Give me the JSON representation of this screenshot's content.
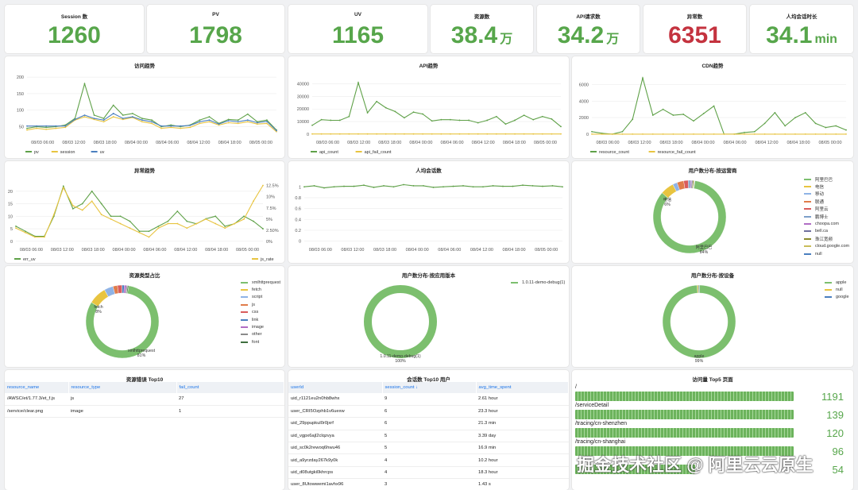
{
  "stats": [
    {
      "title": "Session 数",
      "value": "1260",
      "unit": ""
    },
    {
      "title": "PV",
      "value": "1798",
      "unit": ""
    },
    {
      "title": "UV",
      "value": "1165",
      "unit": ""
    },
    {
      "title": "资源数",
      "value": "38.4",
      "unit": "万"
    },
    {
      "title": "API请求数",
      "value": "34.2",
      "unit": "万"
    },
    {
      "title": "异常数",
      "value": "6351",
      "unit": "",
      "color": "#c4333f"
    },
    {
      "title": "人均会话时长",
      "value": "34.1",
      "unit": "min"
    }
  ],
  "colors": {
    "green": "#5fa148",
    "yellow": "#e8c440",
    "blue": "#4a7fbf",
    "accent_red": "#c4333f"
  },
  "chart_data": [
    {
      "id": "visits",
      "type": "line",
      "title": "访问趋势",
      "x_ticks": [
        "08/03 06:00",
        "08/03 12:00",
        "08/03 18:00",
        "08/04 00:00",
        "08/04 06:00",
        "08/04 12:00",
        "08/04 18:00",
        "08/05 00:00"
      ],
      "y_ticks": [
        50,
        100,
        150,
        200
      ],
      "ylim": [
        20,
        210
      ],
      "series": [
        {
          "name": "pv",
          "color": "#5fa148",
          "values": [
            45,
            50,
            48,
            50,
            55,
            75,
            180,
            85,
            75,
            115,
            85,
            90,
            75,
            70,
            50,
            55,
            50,
            55,
            70,
            80,
            60,
            72,
            70,
            88,
            65,
            70,
            40
          ]
        },
        {
          "name": "session",
          "color": "#e8c440",
          "values": [
            40,
            45,
            42,
            45,
            48,
            70,
            80,
            72,
            65,
            80,
            72,
            78,
            65,
            60,
            45,
            48,
            45,
            48,
            60,
            65,
            55,
            62,
            60,
            65,
            58,
            60,
            35
          ]
        },
        {
          "name": "uv",
          "color": "#4a7fbf",
          "values": [
            52,
            52,
            52,
            52,
            52,
            72,
            85,
            75,
            70,
            90,
            75,
            80,
            70,
            65,
            52,
            52,
            52,
            54,
            65,
            70,
            58,
            68,
            65,
            70,
            62,
            66,
            38
          ]
        }
      ]
    },
    {
      "id": "api",
      "type": "line",
      "title": "API趋势",
      "x_ticks": [
        "08/03 06:00",
        "08/03 12:00",
        "08/03 18:00",
        "08/04 00:00",
        "08/04 06:00",
        "08/04 12:00",
        "08/04 18:00",
        "08/05 00:00"
      ],
      "y_ticks": [
        0,
        10000,
        20000,
        30000,
        40000
      ],
      "ylim": [
        -2000,
        48000
      ],
      "series": [
        {
          "name": "api_count",
          "color": "#5fa148",
          "values": [
            7000,
            11500,
            11000,
            11000,
            14000,
            41000,
            17000,
            26000,
            21000,
            18000,
            13000,
            17500,
            16000,
            10500,
            11500,
            11500,
            11000,
            11000,
            9000,
            11000,
            14000,
            8000,
            11000,
            15000,
            11500,
            14000,
            12000,
            6000
          ]
        },
        {
          "name": "api_fail_count",
          "color": "#e8c440",
          "values": [
            100,
            100,
            100,
            100,
            100,
            100,
            100,
            100,
            100,
            100,
            100,
            100,
            100,
            100,
            100,
            100,
            100,
            100,
            100,
            100,
            100,
            100,
            100,
            100,
            100,
            100,
            100,
            100
          ]
        }
      ]
    },
    {
      "id": "cdn",
      "type": "line",
      "title": "CDN趋势",
      "x_ticks": [
        "08/03 06:00",
        "08/03 12:00",
        "08/03 18:00",
        "08/04 00:00",
        "08/04 06:00",
        "08/04 12:00",
        "08/04 18:00",
        "08/05 00:00"
      ],
      "y_ticks": [
        0,
        2000,
        4000,
        6000
      ],
      "ylim": [
        -300,
        7300
      ],
      "series": [
        {
          "name": "resource_count",
          "color": "#5fa148",
          "values": [
            300,
            100,
            0,
            300,
            1800,
            6800,
            2300,
            3000,
            2300,
            2400,
            1600,
            2500,
            3400,
            0,
            0,
            200,
            300,
            1300,
            2600,
            1000,
            2000,
            2600,
            1300,
            800,
            1000,
            500
          ]
        },
        {
          "name": "resource_fail_count",
          "color": "#e8c440",
          "values": [
            0,
            0,
            0,
            0,
            0,
            0,
            0,
            0,
            0,
            0,
            0,
            0,
            0,
            0,
            0,
            0,
            0,
            0,
            0,
            0,
            0,
            0,
            0,
            0,
            0,
            0
          ]
        }
      ]
    },
    {
      "id": "errors",
      "type": "line",
      "title": "异常趋势",
      "x_ticks": [
        "08/03 06:00",
        "08/03 12:00",
        "08/03 18:00",
        "08/04 00:00",
        "08/04 06:00",
        "08/04 12:00",
        "08/04 18:00",
        "08/05 00:00"
      ],
      "y_ticks": [
        0,
        5,
        10,
        15,
        20
      ],
      "ylim": [
        -1,
        25
      ],
      "y2_ticks": [
        "0%",
        "2.50%",
        "5%",
        "7.5%",
        "10%",
        "12.5%"
      ],
      "y2lim": [
        -0.5,
        14
      ],
      "series": [
        {
          "name": "err_uv",
          "color": "#5fa148",
          "values": [
            6,
            4,
            2,
            2,
            10,
            22,
            13,
            15,
            20,
            15,
            10,
            10,
            8,
            4,
            4,
            6,
            8,
            12,
            8,
            7,
            9,
            10,
            6,
            7,
            10,
            8,
            5
          ]
        },
        {
          "name": "js_rate",
          "color": "#e8c440",
          "values": [
            3,
            2,
            1,
            1,
            6,
            12,
            8,
            7,
            9,
            6,
            5,
            4,
            3,
            2,
            1,
            3,
            4,
            4,
            3,
            4,
            5,
            4,
            3,
            4,
            5,
            9,
            12.5
          ]
        }
      ]
    },
    {
      "id": "session_count",
      "type": "line",
      "title": "人均会话数",
      "x_ticks": [
        "08/03 06:00",
        "08/03 12:00",
        "08/03 18:00",
        "08/04 00:00",
        "08/04 06:00",
        "08/04 12:00",
        "08/04 18:00",
        "08/05 00:00"
      ],
      "y_ticks": [
        0,
        0.2,
        0.4,
        0.6,
        0.8,
        1
      ],
      "ylim": [
        -0.05,
        1.15
      ],
      "series": [
        {
          "name": "",
          "color": "#5fa148",
          "values": [
            1,
            1.02,
            0.98,
            1,
            1.01,
            1.01,
            1.03,
            0.99,
            1.02,
            1,
            1.04,
            1.02,
            1.02,
            0.99,
            1,
            1.01,
            1.02,
            1,
            1,
            1.02,
            1.01,
            1.01,
            1.03,
            1.02,
            1.01,
            1.02,
            1
          ]
        }
      ]
    },
    {
      "id": "isp",
      "type": "pie",
      "title": "用户数分布-按运营商",
      "labels": [
        "阿里巴巴",
        "电信",
        "移动",
        "联通",
        "阿里云",
        "鹏博士",
        "choopa.com",
        "bell.ca",
        "珠江宽频",
        "cloud.google.com",
        "null"
      ],
      "values": [
        84,
        6,
        2,
        3,
        2,
        1,
        0.5,
        0.5,
        0.5,
        0.3,
        0.2
      ],
      "colors": [
        "#7cbf6e",
        "#e8c440",
        "#8fb3e6",
        "#e07c4a",
        "#d95c5c",
        "#7d9fc9",
        "#b06dc4",
        "#6f6f9e",
        "#8a8a2e",
        "#c9bd5a",
        "#4a7fbf"
      ],
      "slice_labels": [
        {
          "text": "阿里巴巴",
          "pct": "84%"
        },
        {
          "text": "电信",
          "pct": "6%"
        }
      ]
    },
    {
      "id": "resource_type",
      "type": "pie",
      "title": "资源类型占比",
      "labels": [
        "xmlhttprequest",
        "fetch",
        "script",
        "js",
        "css",
        "link",
        "image",
        "other",
        "font"
      ],
      "values": [
        81,
        8,
        4,
        2,
        2,
        1,
        1,
        0.5,
        0.5
      ],
      "colors": [
        "#7cbf6e",
        "#e8c440",
        "#8fb3e6",
        "#e07c4a",
        "#d95c5c",
        "#4a7fbf",
        "#b06dc4",
        "#8a8a8a",
        "#3e6e3e"
      ],
      "slice_labels": [
        {
          "text": "xmlhttprequest",
          "pct": "81%"
        },
        {
          "text": "fetch",
          "pct": "8%"
        }
      ]
    },
    {
      "id": "app_version",
      "type": "pie",
      "title": "用户数分布-按应用版本",
      "labels": [
        "1.0.11-demo-debug(1)"
      ],
      "values": [
        100
      ],
      "colors": [
        "#7cbf6e"
      ],
      "slice_labels": [
        {
          "text": "1.0.11-demo-debug(1)",
          "pct": "100%"
        }
      ]
    },
    {
      "id": "device",
      "type": "pie",
      "title": "用户数分布-按设备",
      "labels": [
        "apple",
        "null",
        "google"
      ],
      "values": [
        99,
        0.6,
        0.4
      ],
      "colors": [
        "#7cbf6e",
        "#e8c440",
        "#4a7fbf"
      ],
      "slice_labels": [
        {
          "text": "apple",
          "pct": "99%"
        }
      ]
    }
  ],
  "resource_errors": {
    "title": "资源错误 Top10",
    "columns": [
      "resource_name",
      "resource_type",
      "fail_count"
    ],
    "rows": [
      [
        "/AWSC/et/1.77.3/et_f.js",
        "js",
        "27"
      ],
      [
        "/service/clear.png",
        "image",
        "1"
      ]
    ]
  },
  "session_top": {
    "title": "会话数 Top10 用户",
    "columns": [
      "userId",
      "session_count ↓",
      "avg_time_spent"
    ],
    "rows": [
      [
        "uid_r1121eu2n0hb8whx",
        "9",
        "2.61 hour"
      ],
      [
        "user_CRI5Ozphb1v6uexw",
        "6",
        "23.3 hour"
      ],
      [
        "uid_29ppupkul0r0jxrf",
        "6",
        "21.3 min"
      ],
      [
        "uid_vgpx6ajl2clqzvya",
        "5",
        "3.39 day"
      ],
      [
        "uid_sc0k2rewoq6hwu46",
        "5",
        "16.9 min"
      ],
      [
        "uid_a9yrzday267k9y0k",
        "4",
        "10.2 hour"
      ],
      [
        "uid_d08utgki0khrcps",
        "4",
        "18.3 hour"
      ],
      [
        "user_8Utowwemi1avhx96",
        "3",
        "1.43 s"
      ]
    ]
  },
  "top_pages": {
    "title": "访问量 Top5 页面",
    "items": [
      {
        "label": "/",
        "value": "1191",
        "fraction": 1.0
      },
      {
        "label": "/serviceDetail",
        "value": "139",
        "fraction": 1.0
      },
      {
        "label": "/tracing/cn-shenzhen",
        "value": "120",
        "fraction": 1.0
      },
      {
        "label": "/tracing/cn-shanghai",
        "value": "96",
        "fraction": 1.0
      },
      {
        "label": "",
        "value": "54",
        "fraction": 0.55
      }
    ]
  },
  "watermark": "掘金技术社区 @ 阿里云云原生"
}
